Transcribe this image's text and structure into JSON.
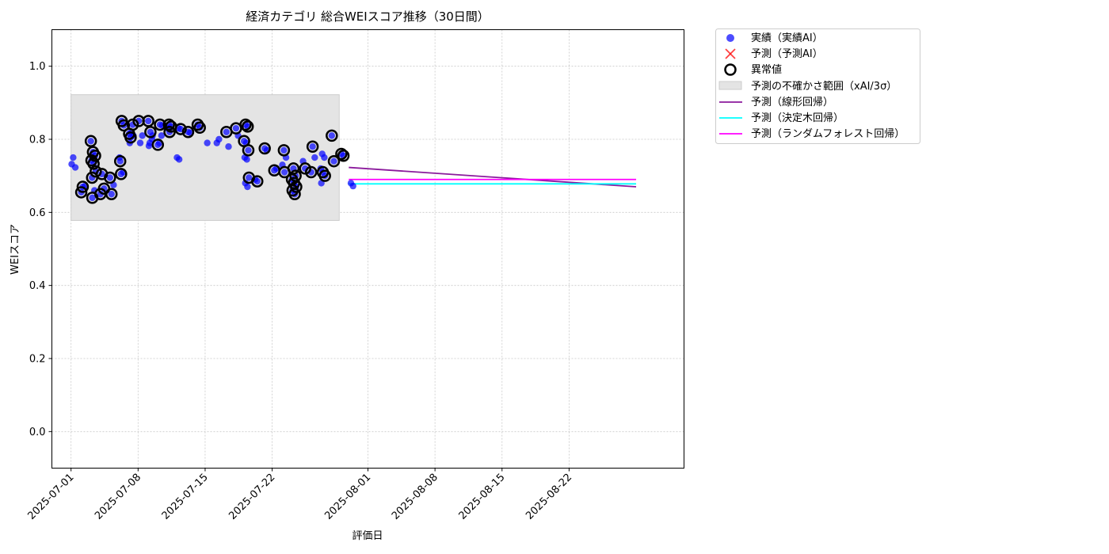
{
  "colors": {
    "actual": "#0000ff",
    "forecast": "#ff0000",
    "anomaly": "#000000",
    "band": "#e4e4e4",
    "linear": "#8b1a9c",
    "tree": "#00ffff",
    "forest": "#ff00ff",
    "grid": "#c8c8c8"
  },
  "chart_data": {
    "type": "scatter",
    "title": "経済カテゴリ 総合WEIスコア推移（30日間）",
    "xlabel": "評価日",
    "ylabel": "WEIスコア",
    "xlim": [
      "2025-06-29",
      "2025-09-03"
    ],
    "ylim": [
      -0.1,
      1.1
    ],
    "grid": true,
    "legend_position": "outside-top-right",
    "x_ticks": [
      "2025-07-01",
      "2025-07-08",
      "2025-07-15",
      "2025-07-22",
      "2025-08-01",
      "2025-08-08",
      "2025-08-15",
      "2025-08-22"
    ],
    "y_ticks": [
      "0.0",
      "0.2",
      "0.4",
      "0.6",
      "0.8",
      "1.0"
    ],
    "legend": [
      {
        "label": "実績（実績AI）",
        "marker": "dot"
      },
      {
        "label": "予測（予測AI）",
        "marker": "x"
      },
      {
        "label": "異常値",
        "marker": "ring"
      },
      {
        "label": "予測の不確かさ範囲（xAI/3σ）",
        "marker": "band"
      },
      {
        "label": "予測（線形回帰）",
        "marker": "line-linear"
      },
      {
        "label": "予測（決定木回帰）",
        "marker": "line-tree"
      },
      {
        "label": "予測（ランダムフォレスト回帰）",
        "marker": "line-forest"
      }
    ],
    "uncertainty_band": {
      "x_start": "2025-07-01",
      "x_end": "2025-07-29",
      "y_low": 0.578,
      "y_high": 0.922
    },
    "series": [
      {
        "name": "実績（実績AI）",
        "points": [
          [
            "2025-07-01",
            0.75
          ],
          [
            "2025-07-01",
            0.723
          ],
          [
            "2025-07-01",
            0.732
          ],
          [
            "2025-07-02",
            0.67
          ],
          [
            "2025-07-02",
            0.672
          ],
          [
            "2025-07-02",
            0.655
          ],
          [
            "2025-07-03",
            0.64
          ],
          [
            "2025-07-03",
            0.66
          ],
          [
            "2025-07-03",
            0.795
          ],
          [
            "2025-07-03",
            0.765
          ],
          [
            "2025-07-03",
            0.755
          ],
          [
            "2025-07-03",
            0.742
          ],
          [
            "2025-07-03",
            0.733
          ],
          [
            "2025-07-03",
            0.712
          ],
          [
            "2025-07-03",
            0.695
          ],
          [
            "2025-07-04",
            0.705
          ],
          [
            "2025-07-04",
            0.665
          ],
          [
            "2025-07-04",
            0.65
          ],
          [
            "2025-07-05",
            0.65
          ],
          [
            "2025-07-05",
            0.675
          ],
          [
            "2025-07-05",
            0.695
          ],
          [
            "2025-07-06",
            0.705
          ],
          [
            "2025-07-06",
            0.71
          ],
          [
            "2025-07-06",
            0.75
          ],
          [
            "2025-07-06",
            0.85
          ],
          [
            "2025-07-06",
            0.838
          ],
          [
            "2025-07-06",
            0.74
          ],
          [
            "2025-07-07",
            0.805
          ],
          [
            "2025-07-07",
            0.84
          ],
          [
            "2025-07-07",
            0.815
          ],
          [
            "2025-07-07",
            0.82
          ],
          [
            "2025-07-07",
            0.81
          ],
          [
            "2025-07-07",
            0.79
          ],
          [
            "2025-07-08",
            0.79
          ],
          [
            "2025-07-08",
            0.81
          ],
          [
            "2025-07-08",
            0.85
          ],
          [
            "2025-07-09",
            0.79
          ],
          [
            "2025-07-09",
            0.8
          ],
          [
            "2025-07-09",
            0.85
          ],
          [
            "2025-07-09",
            0.82
          ],
          [
            "2025-07-09",
            0.81
          ],
          [
            "2025-07-09",
            0.782
          ],
          [
            "2025-07-10",
            0.79
          ],
          [
            "2025-07-10",
            0.81
          ],
          [
            "2025-07-10",
            0.785
          ],
          [
            "2025-07-10",
            0.84
          ],
          [
            "2025-07-10",
            0.838
          ],
          [
            "2025-07-11",
            0.84
          ],
          [
            "2025-07-11",
            0.835
          ],
          [
            "2025-07-11",
            0.83
          ],
          [
            "2025-07-11",
            0.82
          ],
          [
            "2025-07-12",
            0.83
          ],
          [
            "2025-07-12",
            0.828
          ],
          [
            "2025-07-12",
            0.75
          ],
          [
            "2025-07-12",
            0.745
          ],
          [
            "2025-07-13",
            0.82
          ],
          [
            "2025-07-13",
            0.818
          ],
          [
            "2025-07-14",
            0.84
          ],
          [
            "2025-07-14",
            0.832
          ],
          [
            "2025-07-15",
            0.79
          ],
          [
            "2025-07-16",
            0.79
          ],
          [
            "2025-07-16",
            0.8
          ],
          [
            "2025-07-17",
            0.82
          ],
          [
            "2025-07-17",
            0.78
          ],
          [
            "2025-07-18",
            0.83
          ],
          [
            "2025-07-18",
            0.81
          ],
          [
            "2025-07-19",
            0.84
          ],
          [
            "2025-07-19",
            0.835
          ],
          [
            "2025-07-19",
            0.795
          ],
          [
            "2025-07-19",
            0.79
          ],
          [
            "2025-07-19",
            0.77
          ],
          [
            "2025-07-19",
            0.75
          ],
          [
            "2025-07-19",
            0.745
          ],
          [
            "2025-07-19",
            0.695
          ],
          [
            "2025-07-19",
            0.68
          ],
          [
            "2025-07-19",
            0.67
          ],
          [
            "2025-07-20",
            0.69
          ],
          [
            "2025-07-20",
            0.685
          ],
          [
            "2025-07-21",
            0.775
          ],
          [
            "2025-07-21",
            0.77
          ],
          [
            "2025-07-22",
            0.715
          ],
          [
            "2025-07-22",
            0.72
          ],
          [
            "2025-07-23",
            0.77
          ],
          [
            "2025-07-23",
            0.75
          ],
          [
            "2025-07-23",
            0.73
          ],
          [
            "2025-07-23",
            0.71
          ],
          [
            "2025-07-24",
            0.72
          ],
          [
            "2025-07-24",
            0.7
          ],
          [
            "2025-07-24",
            0.69
          ],
          [
            "2025-07-24",
            0.68
          ],
          [
            "2025-07-24",
            0.67
          ],
          [
            "2025-07-24",
            0.66
          ],
          [
            "2025-07-24",
            0.65
          ],
          [
            "2025-07-25",
            0.74
          ],
          [
            "2025-07-25",
            0.72
          ],
          [
            "2025-07-26",
            0.78
          ],
          [
            "2025-07-26",
            0.75
          ],
          [
            "2025-07-26",
            0.71
          ],
          [
            "2025-07-27",
            0.76
          ],
          [
            "2025-07-27",
            0.75
          ],
          [
            "2025-07-27",
            0.72
          ],
          [
            "2025-07-27",
            0.71
          ],
          [
            "2025-07-27",
            0.7
          ],
          [
            "2025-07-27",
            0.68
          ],
          [
            "2025-07-28",
            0.81
          ],
          [
            "2025-07-28",
            0.74
          ],
          [
            "2025-07-29",
            0.76
          ],
          [
            "2025-07-29",
            0.755
          ],
          [
            "2025-07-30",
            0.68
          ],
          [
            "2025-07-30",
            0.672
          ]
        ]
      },
      {
        "name": "異常値",
        "points": [
          [
            "2025-07-02",
            0.67
          ],
          [
            "2025-07-02",
            0.655
          ],
          [
            "2025-07-03",
            0.64
          ],
          [
            "2025-07-03",
            0.795
          ],
          [
            "2025-07-03",
            0.765
          ],
          [
            "2025-07-03",
            0.755
          ],
          [
            "2025-07-03",
            0.742
          ],
          [
            "2025-07-03",
            0.733
          ],
          [
            "2025-07-03",
            0.712
          ],
          [
            "2025-07-03",
            0.695
          ],
          [
            "2025-07-04",
            0.705
          ],
          [
            "2025-07-04",
            0.665
          ],
          [
            "2025-07-04",
            0.65
          ],
          [
            "2025-07-05",
            0.65
          ],
          [
            "2025-07-05",
            0.695
          ],
          [
            "2025-07-06",
            0.705
          ],
          [
            "2025-07-06",
            0.85
          ],
          [
            "2025-07-06",
            0.838
          ],
          [
            "2025-07-06",
            0.74
          ],
          [
            "2025-07-07",
            0.805
          ],
          [
            "2025-07-07",
            0.84
          ],
          [
            "2025-07-07",
            0.815
          ],
          [
            "2025-07-08",
            0.85
          ],
          [
            "2025-07-09",
            0.85
          ],
          [
            "2025-07-09",
            0.82
          ],
          [
            "2025-07-10",
            0.785
          ],
          [
            "2025-07-10",
            0.84
          ],
          [
            "2025-07-11",
            0.84
          ],
          [
            "2025-07-11",
            0.835
          ],
          [
            "2025-07-11",
            0.82
          ],
          [
            "2025-07-12",
            0.828
          ],
          [
            "2025-07-13",
            0.82
          ],
          [
            "2025-07-14",
            0.84
          ],
          [
            "2025-07-14",
            0.832
          ],
          [
            "2025-07-17",
            0.82
          ],
          [
            "2025-07-18",
            0.83
          ],
          [
            "2025-07-19",
            0.84
          ],
          [
            "2025-07-19",
            0.835
          ],
          [
            "2025-07-19",
            0.795
          ],
          [
            "2025-07-19",
            0.77
          ],
          [
            "2025-07-19",
            0.695
          ],
          [
            "2025-07-20",
            0.685
          ],
          [
            "2025-07-21",
            0.775
          ],
          [
            "2025-07-22",
            0.715
          ],
          [
            "2025-07-23",
            0.77
          ],
          [
            "2025-07-23",
            0.71
          ],
          [
            "2025-07-24",
            0.72
          ],
          [
            "2025-07-24",
            0.7
          ],
          [
            "2025-07-24",
            0.69
          ],
          [
            "2025-07-24",
            0.68
          ],
          [
            "2025-07-24",
            0.67
          ],
          [
            "2025-07-24",
            0.66
          ],
          [
            "2025-07-24",
            0.65
          ],
          [
            "2025-07-25",
            0.72
          ],
          [
            "2025-07-26",
            0.78
          ],
          [
            "2025-07-26",
            0.71
          ],
          [
            "2025-07-27",
            0.71
          ],
          [
            "2025-07-27",
            0.7
          ],
          [
            "2025-07-28",
            0.81
          ],
          [
            "2025-07-28",
            0.74
          ],
          [
            "2025-07-29",
            0.76
          ],
          [
            "2025-07-29",
            0.755
          ]
        ]
      },
      {
        "name": "予測（線形回帰）",
        "points": [
          [
            "2025-07-30",
            0.723
          ],
          [
            "2025-08-29",
            0.67
          ]
        ]
      },
      {
        "name": "予測（決定木回帰）",
        "points": [
          [
            "2025-07-30",
            0.678
          ],
          [
            "2025-08-29",
            0.678
          ]
        ]
      },
      {
        "name": "予測（ランダムフォレスト回帰）",
        "points": [
          [
            "2025-07-30",
            0.69
          ],
          [
            "2025-08-29",
            0.69
          ]
        ]
      }
    ]
  }
}
